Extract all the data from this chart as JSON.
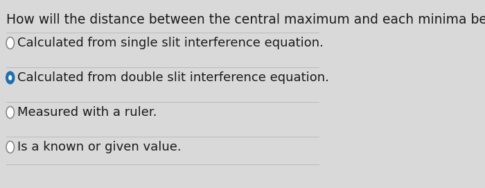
{
  "question": "How will the distance between the central maximum and each minima be found?",
  "options": [
    "Calculated from single slit interference equation.",
    "Calculated from double slit interference equation.",
    "Measured with a ruler.",
    "Is a known or given value."
  ],
  "selected_index": 1,
  "background_color": "#d9d9d9",
  "text_color": "#1a1a1a",
  "question_fontsize": 13.5,
  "option_fontsize": 13.0,
  "radio_unselected_color": "#ffffff",
  "radio_selected_fill": "#1a6fb5",
  "radio_selected_border": "#1a6fb5",
  "divider_color": "#bbbbbb"
}
